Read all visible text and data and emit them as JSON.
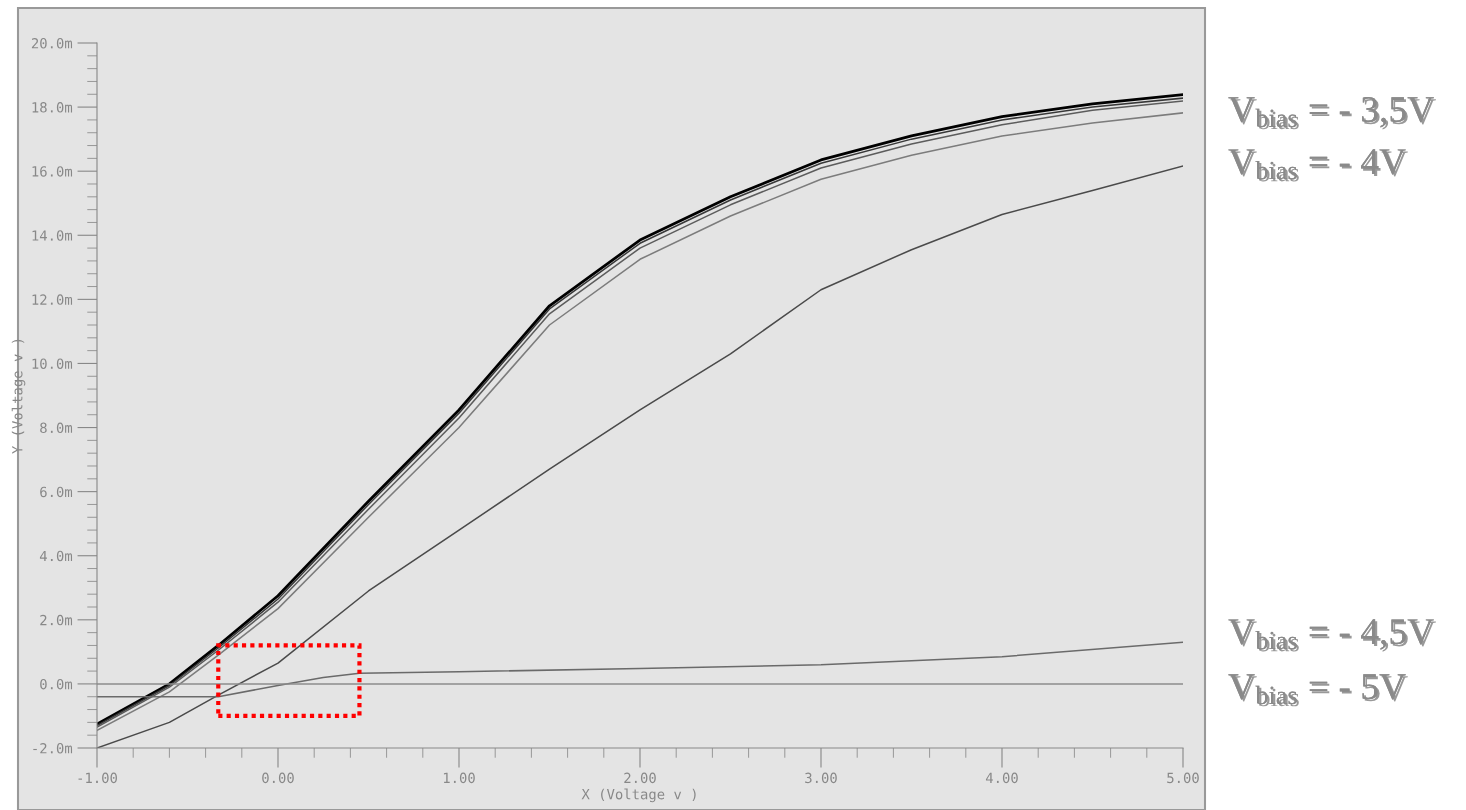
{
  "chart_data": {
    "type": "line",
    "xlabel": "X (Voltage v )",
    "ylabel": "Y (Voltage v )",
    "annotations": [
      "V$_{bias}$ = - 3,5V",
      "V$_{bias}$ = - 4V",
      "V$_{bias}$ = - 4,5V",
      "V$_{bias}$ = - 5V"
    ],
    "x": [
      -1,
      -0.6,
      -0.33,
      0,
      0.5,
      1,
      1.5,
      2,
      2.5,
      3,
      3.5,
      4,
      4.5,
      5
    ],
    "series": [
      {
        "color": "#000000",
        "values": [
          -1.25,
          0,
          1.2,
          2.75,
          5.7,
          8.55,
          11.8,
          13.85,
          15.2,
          16.35,
          17.1,
          17.7,
          18.1,
          18.39
        ]
      },
      {
        "color": "#383838",
        "values": [
          -1.3,
          -0.05,
          1.12,
          2.65,
          5.6,
          8.45,
          11.7,
          13.75,
          15.1,
          16.25,
          17.0,
          17.6,
          18.0,
          18.28
        ]
      },
      {
        "color": "#5c5c5c",
        "values": [
          -1.35,
          -0.1,
          1.05,
          2.55,
          5.45,
          8.3,
          11.55,
          13.6,
          14.95,
          16.1,
          16.85,
          17.45,
          17.9,
          18.19
        ]
      },
      {
        "color": "#7c7c7c",
        "values": [
          -1.45,
          -0.25,
          0.9,
          2.35,
          5.2,
          8.0,
          11.2,
          13.25,
          14.6,
          15.75,
          16.5,
          17.1,
          17.5,
          17.82
        ]
      },
      {
        "color": "#4a4a4a",
        "values": [
          -2.0,
          -1.2,
          -0.35,
          0.65,
          2.9,
          4.8,
          6.7,
          8.55,
          10.3,
          12.3,
          13.55,
          14.65,
          15.4,
          16.16
        ]
      },
      {
        "color": "#6a6a6a",
        "x": [
          -1,
          -0.33,
          0,
          0.25,
          0.45,
          1,
          2,
          3,
          4,
          5
        ],
        "values": [
          -0.4,
          -0.4,
          -0.05,
          0.2,
          0.33,
          0.38,
          0.48,
          0.6,
          0.85,
          1.3
        ]
      },
      {
        "color": "#8c8c8c",
        "x": [
          -1,
          5
        ],
        "values": [
          0,
          0
        ]
      }
    ],
    "xlim": [
      -1,
      5
    ],
    "ylim": [
      -2,
      20
    ],
    "xticks": [
      {
        "value": -1,
        "label": "-1.00"
      },
      {
        "value": 0,
        "label": "0.00"
      },
      {
        "value": 1,
        "label": "1.00"
      },
      {
        "value": 2,
        "label": "2.00"
      },
      {
        "value": 3,
        "label": "3.00"
      },
      {
        "value": 4,
        "label": "4.00"
      },
      {
        "value": 5,
        "label": "5.00"
      }
    ],
    "yticks": [
      {
        "value": -2,
        "label": "-2.0m"
      },
      {
        "value": 0,
        "label": "0.0m"
      },
      {
        "value": 2,
        "label": "2.0m"
      },
      {
        "value": 4,
        "label": "4.0m"
      },
      {
        "value": 6,
        "label": "6.0m"
      },
      {
        "value": 8,
        "label": "8.0m"
      },
      {
        "value": 10,
        "label": "10.0m"
      },
      {
        "value": 12,
        "label": "12.0m"
      },
      {
        "value": 14,
        "label": "14.0m"
      },
      {
        "value": 16,
        "label": "16.0m"
      },
      {
        "value": 18,
        "label": "18.0m"
      },
      {
        "value": 20,
        "label": "20.0m"
      }
    ],
    "grid": false,
    "legend": false
  }
}
